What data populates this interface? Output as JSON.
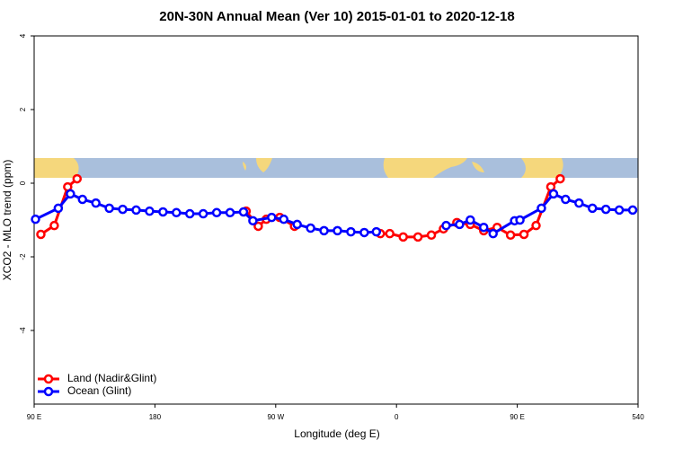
{
  "chart_data": {
    "type": "line",
    "title": "20N-30N Annual Mean (Ver 10)   2015-01-01 to 2020-12-18",
    "x_label": "Longitude (deg E)",
    "y_label": "XCO2 - MLO trend (ppm)",
    "xlim": [
      90,
      540
    ],
    "xticks": [
      {
        "value": 90,
        "label": "90 E"
      },
      180,
      {
        "value": 270,
        "label": "90 W"
      },
      {
        "value": 360,
        "label": "0"
      },
      {
        "value": 450,
        "label": "90 E"
      },
      540
    ],
    "ylim": [
      -6,
      4
    ],
    "yticks": [
      4,
      2,
      0,
      -2,
      -4
    ],
    "legend": "bottom-left",
    "series": [
      {
        "name": "Land (Nadir&Glint)",
        "color": "#ff0000",
        "x": [
          95,
          105,
          115,
          122,
          null,
          248,
          257,
          263,
          273,
          284,
          null,
          348,
          355,
          365,
          376,
          386,
          395,
          405,
          415,
          425,
          435,
          445,
          455,
          464,
          475,
          482
        ],
        "values": [
          -1.39,
          -1.15,
          -0.1,
          0.12,
          null,
          -0.76,
          -1.17,
          -0.98,
          -0.93,
          -1.17,
          null,
          -1.37,
          -1.37,
          -1.46,
          -1.46,
          -1.41,
          -1.24,
          -1.07,
          -1.12,
          -1.29,
          -1.2,
          -1.41,
          -1.39,
          -1.15,
          -0.1,
          0.12
        ]
      },
      {
        "name": "Ocean (Glint)",
        "color": "#0000ff",
        "x": [
          91,
          108,
          117,
          126,
          136,
          146,
          156,
          166,
          176,
          186,
          196,
          206,
          216,
          226,
          236,
          246,
          253,
          267,
          276,
          286,
          296,
          306,
          316,
          326,
          336,
          345,
          null,
          397,
          407,
          415,
          425,
          432,
          448,
          452,
          468,
          477,
          486,
          496,
          506,
          516,
          526,
          536
        ],
        "values": [
          -0.98,
          -0.68,
          -0.29,
          -0.44,
          -0.54,
          -0.68,
          -0.71,
          -0.73,
          -0.76,
          -0.78,
          -0.8,
          -0.83,
          -0.83,
          -0.8,
          -0.8,
          -0.78,
          -1.02,
          -0.93,
          -0.98,
          -1.12,
          -1.22,
          -1.29,
          -1.29,
          -1.32,
          -1.34,
          -1.32,
          null,
          -1.15,
          -1.12,
          -1.0,
          -1.2,
          -1.37,
          -1.02,
          -1.0,
          -0.68,
          -0.29,
          -0.44,
          -0.54,
          -0.68,
          -0.71,
          -0.73,
          -0.73
        ]
      }
    ]
  }
}
